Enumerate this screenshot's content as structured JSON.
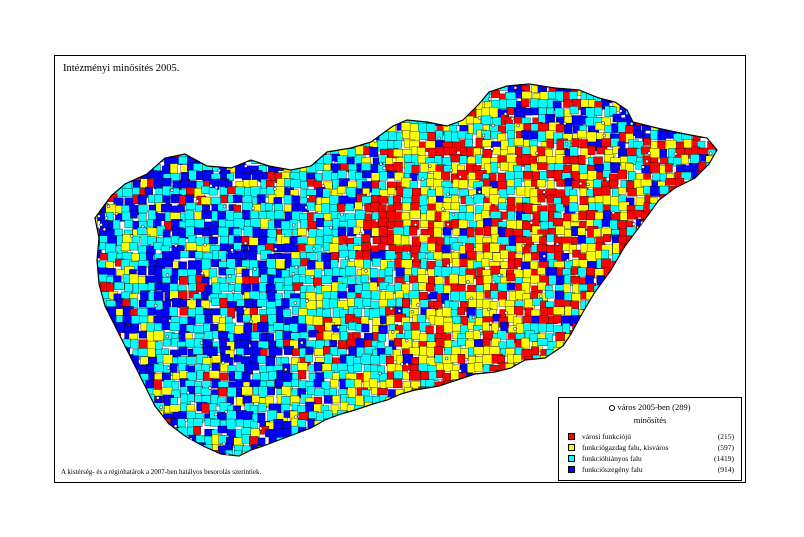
{
  "map": {
    "title": "Intézményi minősítés 2005.",
    "footnote": "A kistérség- és a régióhatárok a 2007-ben hatályos besorolás szerintiek.",
    "legend": {
      "city_label": "város 2005-ben (289)",
      "heading": "minősítés",
      "items": [
        {
          "label": "városi funkciójú",
          "count": "(215)",
          "color": "#ff0000"
        },
        {
          "label": "funkciógazdag falu, kisváros",
          "count": "(597)",
          "color": "#ffff00"
        },
        {
          "label": "funkcióhiányos falu",
          "count": "(1419)",
          "color": "#00ffff"
        },
        {
          "label": "funkciószegény falu",
          "count": "(914)",
          "color": "#0000ff"
        }
      ]
    },
    "boundary_color": "#000000"
  }
}
